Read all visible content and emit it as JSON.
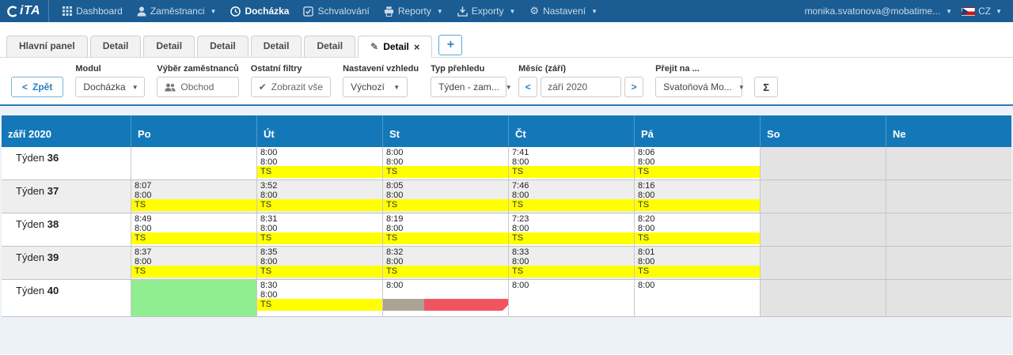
{
  "navbar": {
    "logo_text": "iTA",
    "items": [
      {
        "label": "Dashboard",
        "icon": "grid-icon",
        "caret": false
      },
      {
        "label": "Zaměstnanci",
        "icon": "user-icon",
        "caret": true
      },
      {
        "label": "Docházka",
        "icon": "clock-icon",
        "caret": false
      },
      {
        "label": "Schvalování",
        "icon": "check-icon",
        "caret": false
      },
      {
        "label": "Reporty",
        "icon": "printer-icon",
        "caret": true
      },
      {
        "label": "Exporty",
        "icon": "download-icon",
        "caret": true
      },
      {
        "label": "Nastavení",
        "icon": "gear-icon",
        "caret": true
      }
    ],
    "active_item": "Docházka",
    "user": "monika.svatonova@mobatime...",
    "lang": "CZ"
  },
  "tabs": {
    "items": [
      "Hlavní panel",
      "Detail",
      "Detail",
      "Detail",
      "Detail",
      "Detail"
    ],
    "active": "Detail",
    "close": "×",
    "add": "+"
  },
  "toolbar": {
    "back": "Zpět",
    "back_chevron": "<",
    "modul_label": "Modul",
    "modul_value": "Docházka",
    "vyber_label": "Výběr zaměstnanců",
    "vyber_value": "Obchod",
    "filtry_label": "Ostatní filtry",
    "filtry_value": "Zobrazit vše",
    "filtry_check": "✔",
    "vzhled_label": "Nastavení vzhledu",
    "vzhled_value": "Výchozí",
    "typ_label": "Typ přehledu",
    "typ_value": "Týden - zam...",
    "mesic_label": "Měsíc (září)",
    "mesic_value": "září 2020",
    "mesic_prev": "<",
    "mesic_next": ">",
    "prejit_label": "Přejit na ...",
    "prejit_value": "Svatoňová Mo...",
    "sum": "Σ",
    "caret": "▼"
  },
  "colors": {
    "nav_blue": "#1b5c92",
    "header_blue": "#1478b8",
    "yellow": "#ffff00",
    "green": "#90ee90",
    "red": "#f0545f",
    "taupe": "#aba395",
    "weekend_gray": "#e3e3e3",
    "alt_row_gray": "#eeeeee"
  },
  "table": {
    "title": "září 2020",
    "days": [
      "Po",
      "Út",
      "St",
      "Čt",
      "Pá",
      "So",
      "Ne"
    ],
    "weeks": [
      {
        "label": "Týden",
        "num": "36",
        "cells": [
          null,
          {
            "t1": "8:00",
            "t2": "8:00",
            "tag": "TS"
          },
          {
            "t1": "8:00",
            "t2": "8:00",
            "tag": "TS"
          },
          {
            "t1": "7:41",
            "t2": "8:00",
            "tag": "TS"
          },
          {
            "t1": "8:06",
            "t2": "8:00",
            "tag": "TS"
          },
          null,
          null
        ]
      },
      {
        "label": "Týden",
        "num": "37",
        "cells": [
          {
            "t1": "8:07",
            "t2": "8:00",
            "tag": "TS"
          },
          {
            "t1": "3:52",
            "t2": "8:00",
            "tag": "TS"
          },
          {
            "t1": "8:05",
            "t2": "8:00",
            "tag": "TS"
          },
          {
            "t1": "7:46",
            "t2": "8:00",
            "tag": "TS"
          },
          {
            "t1": "8:16",
            "t2": "8:00",
            "tag": "TS"
          },
          null,
          null
        ]
      },
      {
        "label": "Týden",
        "num": "38",
        "cells": [
          {
            "t1": "8:49",
            "t2": "8:00",
            "tag": "TS"
          },
          {
            "t1": "8:31",
            "t2": "8:00",
            "tag": "TS"
          },
          {
            "t1": "8:19",
            "t2": "8:00",
            "tag": "TS"
          },
          {
            "t1": "7:23",
            "t2": "8:00",
            "tag": "TS"
          },
          {
            "t1": "8:20",
            "t2": "8:00",
            "tag": "TS"
          },
          null,
          null
        ]
      },
      {
        "label": "Týden",
        "num": "39",
        "cells": [
          {
            "t1": "8:37",
            "t2": "8:00",
            "tag": "TS"
          },
          {
            "t1": "8:35",
            "t2": "8:00",
            "tag": "TS"
          },
          {
            "t1": "8:32",
            "t2": "8:00",
            "tag": "TS"
          },
          {
            "t1": "8:33",
            "t2": "8:00",
            "tag": "TS"
          },
          {
            "t1": "8:01",
            "t2": "8:00",
            "tag": "TS"
          },
          null,
          null
        ]
      },
      {
        "label": "Týden",
        "num": "40",
        "cells": [
          {
            "fill": "green"
          },
          {
            "t1": "8:30",
            "t2": "8:00",
            "tag": "TS"
          },
          {
            "t1": "8:00",
            "bar": [
              {
                "color": "taupe",
                "width": 33
              },
              {
                "color": "red",
                "width": 67,
                "notch": true
              }
            ]
          },
          {
            "t1": "8:00"
          },
          {
            "t1": "8:00"
          },
          null,
          null
        ]
      }
    ]
  }
}
